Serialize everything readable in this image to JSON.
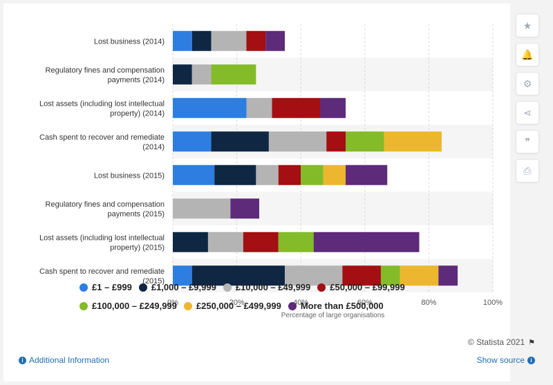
{
  "chart_data": {
    "type": "bar",
    "orientation": "horizontal",
    "stacked": true,
    "categories": [
      [
        "Lost business (2014)"
      ],
      [
        "Regulatory fines and compensation",
        "payments (2014)"
      ],
      [
        "Lost assets (including lost intellectual",
        "property) (2014)"
      ],
      [
        "Cash spent to recover and remediate",
        "(2014)"
      ],
      [
        "Lost business (2015)"
      ],
      [
        "Regulatory fines and compensation",
        "payments (2015)"
      ],
      [
        "Lost assets (including lost intellectual",
        "property) (2015)"
      ],
      [
        "Cash spent to recover and remediate",
        "(2015)"
      ]
    ],
    "series": [
      {
        "name": "£1 – £999",
        "color": "#2d7ee0",
        "values": [
          6,
          0,
          23,
          12,
          13,
          0,
          0,
          6
        ]
      },
      {
        "name": "£1,000 – £9,999",
        "color": "#0f2742",
        "values": [
          6,
          6,
          0,
          18,
          13,
          0,
          11,
          29
        ]
      },
      {
        "name": "£10,000 – £49,999",
        "color": "#b4b4b4",
        "values": [
          11,
          6,
          8,
          18,
          7,
          18,
          11,
          18
        ]
      },
      {
        "name": "£50,000 – £99,999",
        "color": "#a30f12",
        "values": [
          6,
          0,
          15,
          6,
          7,
          0,
          11,
          12
        ]
      },
      {
        "name": "£100,000 – £249,999",
        "color": "#83bb29",
        "values": [
          0,
          14,
          0,
          12,
          7,
          0,
          11,
          6
        ]
      },
      {
        "name": "£250,000 – £499,999",
        "color": "#ecb72e",
        "values": [
          0,
          0,
          0,
          18,
          7,
          0,
          0,
          12
        ]
      },
      {
        "name": "More than £500,000",
        "color": "#5e2a7a",
        "values": [
          6,
          0,
          8,
          0,
          13,
          9,
          33,
          6
        ]
      }
    ],
    "xlim": [
      0,
      100
    ],
    "xticks": [
      "0%",
      "20%",
      "40%",
      "60%",
      "80%",
      "100%"
    ],
    "xlabel": "Percentage of large organisations",
    "ylabel": "",
    "grid": true,
    "legend_position": "bottom"
  },
  "toolbar": {
    "items": [
      {
        "name": "favorite-star-icon",
        "glyph": "★"
      },
      {
        "name": "notification-bell-icon",
        "glyph": "🔔"
      },
      {
        "name": "settings-gear-icon",
        "glyph": "⚙"
      },
      {
        "name": "share-icon",
        "glyph": "⋖"
      },
      {
        "name": "cite-quote-icon",
        "glyph": "❞"
      },
      {
        "name": "print-icon",
        "glyph": "⎙"
      }
    ]
  },
  "footer": {
    "copyright": "© Statista 2021",
    "additional_info": "Additional Information",
    "show_source": "Show source"
  }
}
